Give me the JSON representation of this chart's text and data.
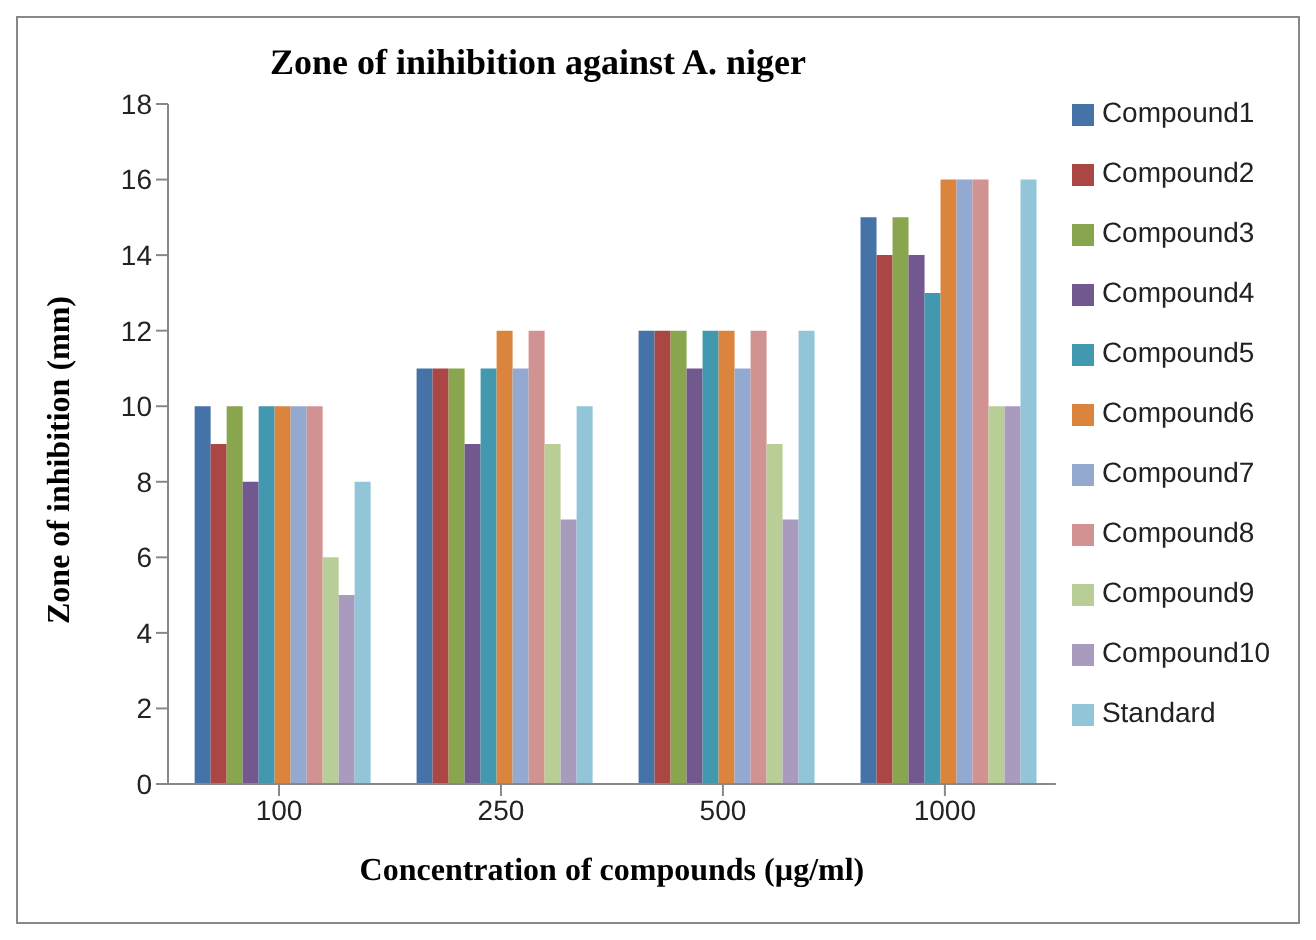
{
  "chart_data": {
    "type": "bar",
    "title": "Zone of inihibition against A. niger",
    "xlabel": "Concentration of compounds (µg/ml)",
    "ylabel": "Zone of inhibition (mm)",
    "categories": [
      "100",
      "250",
      "500",
      "1000"
    ],
    "series": [
      {
        "name": "Compound1",
        "color": "#4572a7",
        "values": [
          10,
          11,
          12,
          15
        ]
      },
      {
        "name": "Compound2",
        "color": "#aa4643",
        "values": [
          9,
          11,
          12,
          14
        ]
      },
      {
        "name": "Compound3",
        "color": "#89a54e",
        "values": [
          10,
          11,
          12,
          15
        ]
      },
      {
        "name": "Compound4",
        "color": "#71588f",
        "values": [
          8,
          9,
          11,
          14
        ]
      },
      {
        "name": "Compound5",
        "color": "#4198af",
        "values": [
          10,
          11,
          12,
          13
        ]
      },
      {
        "name": "Compound6",
        "color": "#db843d",
        "values": [
          10,
          12,
          12,
          16
        ]
      },
      {
        "name": "Compound7",
        "color": "#93a9cf",
        "values": [
          10,
          11,
          11,
          16
        ]
      },
      {
        "name": "Compound8",
        "color": "#d19392",
        "values": [
          10,
          12,
          12,
          16
        ]
      },
      {
        "name": "Compound9",
        "color": "#b9cd96",
        "values": [
          6,
          9,
          9,
          10
        ]
      },
      {
        "name": "Compound10",
        "color": "#a99bbd",
        "values": [
          5,
          7,
          7,
          10
        ]
      },
      {
        "name": "Standard",
        "color": "#92c5d8",
        "values": [
          8,
          10,
          12,
          16
        ]
      }
    ],
    "ylim": [
      0,
      18
    ],
    "yticks": [
      0,
      2,
      4,
      6,
      8,
      10,
      12,
      14,
      16,
      18
    ],
    "grid": false,
    "legend": "right"
  }
}
